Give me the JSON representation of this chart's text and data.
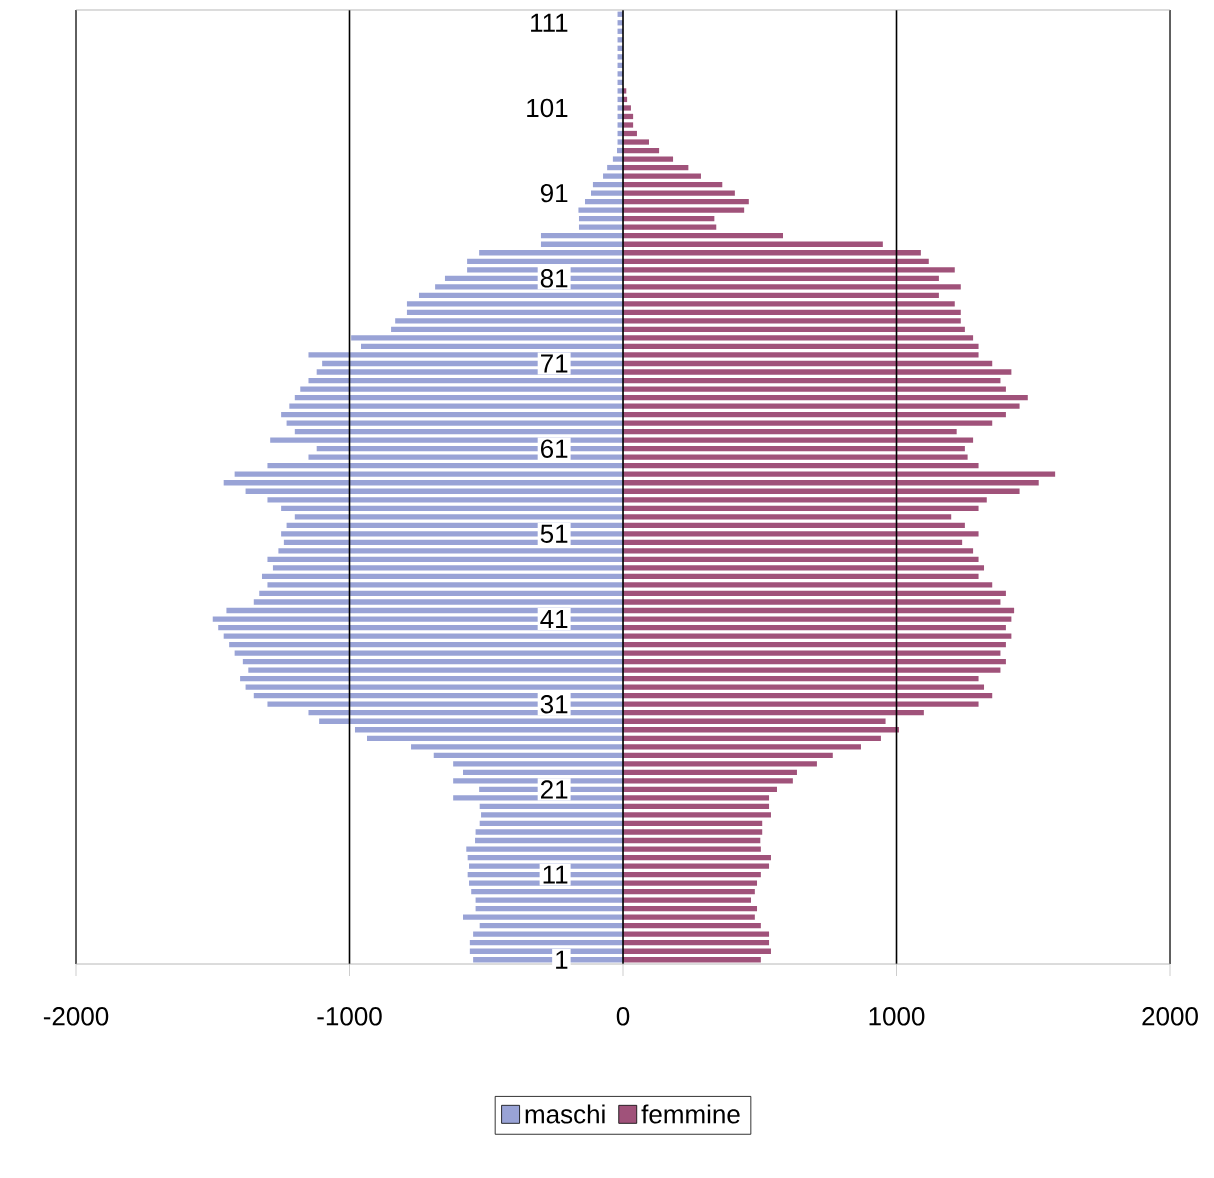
{
  "chart_data": {
    "type": "bar",
    "orientation": "horizontal",
    "stacked": true,
    "categories": [
      null,
      "111",
      null,
      null,
      null,
      null,
      null,
      null,
      null,
      null,
      null,
      "101",
      null,
      null,
      null,
      null,
      null,
      null,
      null,
      null,
      null,
      "91",
      null,
      null,
      null,
      null,
      null,
      null,
      null,
      null,
      null,
      "81",
      null,
      null,
      null,
      null,
      null,
      null,
      null,
      null,
      null,
      "71",
      null,
      null,
      null,
      null,
      null,
      null,
      null,
      null,
      null,
      "61",
      null,
      null,
      null,
      null,
      null,
      null,
      null,
      null,
      null,
      "51",
      null,
      null,
      null,
      null,
      null,
      null,
      null,
      null,
      null,
      "41",
      null,
      null,
      null,
      null,
      null,
      null,
      null,
      null,
      null,
      "31",
      null,
      null,
      null,
      null,
      null,
      null,
      null,
      null,
      null,
      "21",
      null,
      null,
      null,
      null,
      null,
      null,
      null,
      null,
      null,
      "11",
      null,
      null,
      null,
      null,
      null,
      null,
      null,
      null,
      null,
      "1"
    ],
    "series": [
      {
        "name": "maschi",
        "color": "#99a3d6",
        "values": [
          -20,
          -20,
          -20,
          -20,
          -20,
          -20,
          -20,
          -20,
          -20,
          -20,
          -20,
          -20,
          -20,
          -20,
          -20,
          -20,
          -22,
          -37,
          -58,
          -73,
          -110,
          -117,
          -139,
          -163,
          -161,
          -161,
          -300,
          -300,
          -526,
          -570,
          -570,
          -651,
          -687,
          -746,
          -790,
          -790,
          -833,
          -848,
          -994,
          -958,
          -1150,
          -1100,
          -1120,
          -1150,
          -1180,
          -1200,
          -1220,
          -1250,
          -1230,
          -1200,
          -1290,
          -1120,
          -1150,
          -1300,
          -1420,
          -1460,
          -1380,
          -1300,
          -1250,
          -1200,
          -1230,
          -1250,
          -1240,
          -1260,
          -1300,
          -1280,
          -1320,
          -1300,
          -1330,
          -1350,
          -1450,
          -1500,
          -1480,
          -1460,
          -1440,
          -1420,
          -1390,
          -1370,
          -1400,
          -1380,
          -1350,
          -1300,
          -1150,
          -1111,
          -980,
          -936,
          -775,
          -692,
          -621,
          -585,
          -621,
          -526,
          -621,
          -524,
          -519,
          -524,
          -539,
          -541,
          -573,
          -568,
          -563,
          -568,
          -563,
          -555,
          -539,
          -539,
          -585,
          -524,
          -548,
          -560,
          -560,
          -548
        ]
      },
      {
        "name": "femmine",
        "color": "#a0527a",
        "values": [
          null,
          null,
          null,
          null,
          null,
          null,
          null,
          null,
          null,
          12,
          15,
          29,
          37,
          37,
          51,
          95,
          132,
          183,
          239,
          285,
          363,
          409,
          460,
          443,
          334,
          341,
          585,
          950,
          1089,
          1118,
          1213,
          1155,
          1235,
          1155,
          1213,
          1235,
          1235,
          1250,
          1280,
          1300,
          1300,
          1350,
          1420,
          1380,
          1400,
          1480,
          1450,
          1400,
          1350,
          1220,
          1280,
          1250,
          1260,
          1300,
          1580,
          1520,
          1450,
          1330,
          1300,
          1200,
          1250,
          1300,
          1240,
          1280,
          1300,
          1320,
          1300,
          1350,
          1400,
          1380,
          1430,
          1420,
          1400,
          1420,
          1400,
          1380,
          1400,
          1380,
          1300,
          1320,
          1350,
          1300,
          1100,
          960,
          1009,
          943,
          870,
          767,
          709,
          636,
          621,
          563,
          534,
          534,
          541,
          509,
          509,
          502,
          504,
          541,
          534,
          504,
          490,
          482,
          468,
          490,
          482,
          504,
          534,
          534,
          541,
          504
        ]
      }
    ],
    "xlim": [
      -2000,
      2000
    ],
    "xticks": [
      -2000,
      -1000,
      0,
      1000,
      2000
    ],
    "grid": "x",
    "legend": "bottom"
  }
}
